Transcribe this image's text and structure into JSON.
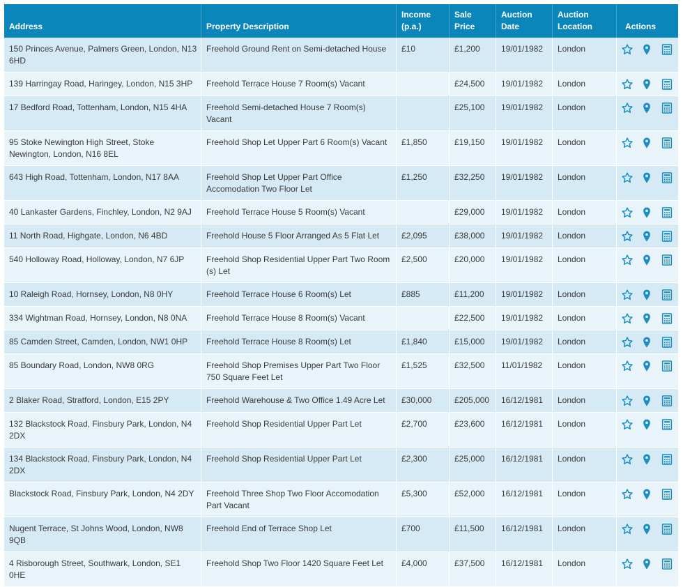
{
  "columns": {
    "address": "Address",
    "description": "Property Description",
    "income_1": "Income",
    "income_2": "(p.a.)",
    "sale_1": "Sale",
    "sale_2": "Price",
    "date_1": "Auction",
    "date_2": "Date",
    "loc_1": "Auction",
    "loc_2": "Location",
    "actions": "Actions"
  },
  "colors": {
    "header_bg": "#0b86bb",
    "row_odd": "#d6eaf5",
    "row_even": "#e9f4fa",
    "icon": "#1a8fc2"
  },
  "action_icons": [
    "star-icon",
    "map-pin-icon",
    "calculator-icon"
  ],
  "rows": [
    {
      "address": "150 Princes Avenue, Palmers Green, London, N13 6HD",
      "description": "Freehold Ground Rent on Semi-detached House",
      "income": "£10",
      "price": "£1,200",
      "date": "19/01/1982",
      "location": "London"
    },
    {
      "address": "139 Harringay Road, Haringey, London, N15 3HP",
      "description": "Freehold Terrace House 7 Room(s) Vacant",
      "income": "",
      "price": "£24,500",
      "date": "19/01/1982",
      "location": "London"
    },
    {
      "address": "17 Bedford Road, Tottenham, London, N15 4HA",
      "description": "Freehold Semi-detached House 7 Room(s) Vacant",
      "income": "",
      "price": "£25,100",
      "date": "19/01/1982",
      "location": "London"
    },
    {
      "address": "95 Stoke Newington High Street, Stoke Newington, London, N16 8EL",
      "description": "Freehold Shop Let Upper Part 6 Room(s) Vacant",
      "income": "£1,850",
      "price": "£19,150",
      "date": "19/01/1982",
      "location": "London"
    },
    {
      "address": "643 High Road, Tottenham, London, N17 8AA",
      "description": "Freehold Shop Let Upper Part Office Accomodation Two Floor Let",
      "income": "£1,250",
      "price": "£32,250",
      "date": "19/01/1982",
      "location": "London"
    },
    {
      "address": "40 Lankaster Gardens, Finchley, London, N2 9AJ",
      "description": "Freehold Terrace House 5 Room(s) Vacant",
      "income": "",
      "price": "£29,000",
      "date": "19/01/1982",
      "location": "London"
    },
    {
      "address": "11 North Road, Highgate, London, N6 4BD",
      "description": "Freehold House 5 Floor Arranged As 5 Flat Let",
      "income": "£2,095",
      "price": "£38,000",
      "date": "19/01/1982",
      "location": "London"
    },
    {
      "address": "540 Holloway Road, Holloway, London, N7 6JP",
      "description": "Freehold Shop Residential Upper Part Two Room (s) Let",
      "income": "£2,500",
      "price": "£20,000",
      "date": "19/01/1982",
      "location": "London"
    },
    {
      "address": "10 Raleigh Road, Hornsey, London, N8 0HY",
      "description": "Freehold Terrace House 6 Room(s) Let",
      "income": "£885",
      "price": "£11,200",
      "date": "19/01/1982",
      "location": "London"
    },
    {
      "address": "334 Wightman Road, Hornsey, London, N8 0NA",
      "description": "Freehold Terrace House 8 Room(s) Vacant",
      "income": "",
      "price": "£22,500",
      "date": "19/01/1982",
      "location": "London"
    },
    {
      "address": "85 Camden Street, Camden, London, NW1 0HP",
      "description": "Freehold Terrace House 8 Room(s) Let",
      "income": "£1,840",
      "price": "£15,000",
      "date": "19/01/1982",
      "location": "London"
    },
    {
      "address": "85 Boundary Road, London, NW8 0RG",
      "description": "Freehold Shop Premises Upper Part Two Floor 750 Square Feet Let",
      "income": "£1,525",
      "price": "£32,500",
      "date": "11/01/1982",
      "location": "London"
    },
    {
      "address": "2 Blaker Road, Stratford, London, E15 2PY",
      "description": "Freehold Warehouse & Two Office 1.49 Acre Let",
      "income": "£30,000",
      "price": "£205,000",
      "date": "16/12/1981",
      "location": "London"
    },
    {
      "address": "132 Blackstock Road, Finsbury Park, London, N4 2DX",
      "description": "Freehold Shop Residential Upper Part Let",
      "income": "£2,700",
      "price": "£23,600",
      "date": "16/12/1981",
      "location": "London"
    },
    {
      "address": "134 Blackstock Road, Finsbury Park, London, N4 2DX",
      "description": "Freehold Shop Residential Upper Part Let",
      "income": "£2,300",
      "price": "£25,000",
      "date": "16/12/1981",
      "location": "London"
    },
    {
      "address": "Blackstock Road, Finsbury Park, London, N4 2DY",
      "description": "Freehold Three Shop Two Floor Accomodation Part Vacant",
      "income": "£5,300",
      "price": "£52,000",
      "date": "16/12/1981",
      "location": "London"
    },
    {
      "address": "Nugent Terrace, St Johns Wood, London, NW8 9QB",
      "description": "Freehold End of Terrace Shop Let",
      "income": "£700",
      "price": "£11,500",
      "date": "16/12/1981",
      "location": "London"
    },
    {
      "address": "4 Risborough Street, Southwark, London, SE1 0HE",
      "description": "Freehold Shop Two Floor 1420 Square Feet Let",
      "income": "£4,000",
      "price": "£37,500",
      "date": "16/12/1981",
      "location": "London"
    }
  ]
}
